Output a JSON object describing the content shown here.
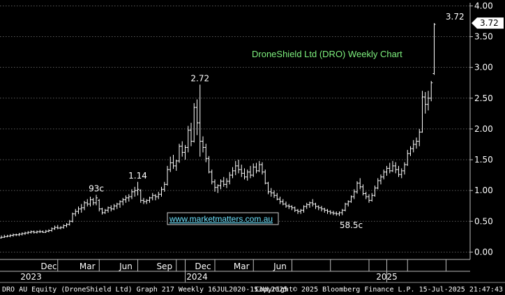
{
  "chart_data": {
    "type": "ohlc",
    "title": "DroneShield Ltd (DRO) Weekly Chart",
    "watermark": "www.marketmatters.com.au",
    "y_ticks": [
      "4.00",
      "3.50",
      "3.00",
      "2.50",
      "2.00",
      "1.50",
      "1.00",
      "0.50",
      "0.00"
    ],
    "y_tick_values": [
      4.0,
      3.5,
      3.0,
      2.5,
      2.0,
      1.5,
      1.0,
      0.5,
      0.0
    ],
    "ylim": [
      -0.12,
      4.05
    ],
    "x_month_labels": [
      "Dec",
      "Mar",
      "Jun",
      "Sep",
      "Dec",
      "Mar",
      "Jun"
    ],
    "x_year_labels": [
      "2023",
      "2024",
      "2025"
    ],
    "last_price": "3.72",
    "annotations": [
      {
        "text": "93c",
        "week": 32,
        "value": 0.93
      },
      {
        "text": "1.14",
        "week": 46,
        "value": 1.14
      },
      {
        "text": "2.72",
        "week": 67,
        "value": 2.72
      },
      {
        "text": "58.5c",
        "week": 118,
        "value": 0.585
      },
      {
        "text": "3.72",
        "week": 153,
        "value": 3.72
      }
    ],
    "weeks": [
      {
        "high": 0.27,
        "low": 0.22,
        "open": 0.23,
        "close": 0.24
      },
      {
        "high": 0.28,
        "low": 0.23,
        "open": 0.24,
        "close": 0.25
      },
      {
        "high": 0.28,
        "low": 0.24,
        "open": 0.25,
        "close": 0.26
      },
      {
        "high": 0.29,
        "low": 0.24,
        "open": 0.26,
        "close": 0.27
      },
      {
        "high": 0.3,
        "low": 0.25,
        "open": 0.27,
        "close": 0.28
      },
      {
        "high": 0.3,
        "low": 0.26,
        "open": 0.28,
        "close": 0.28
      },
      {
        "high": 0.31,
        "low": 0.26,
        "open": 0.28,
        "close": 0.29
      },
      {
        "high": 0.32,
        "low": 0.27,
        "open": 0.29,
        "close": 0.3
      },
      {
        "high": 0.33,
        "low": 0.28,
        "open": 0.3,
        "close": 0.31
      },
      {
        "high": 0.34,
        "low": 0.29,
        "open": 0.31,
        "close": 0.32
      },
      {
        "high": 0.35,
        "low": 0.3,
        "open": 0.32,
        "close": 0.33
      },
      {
        "high": 0.35,
        "low": 0.3,
        "open": 0.33,
        "close": 0.32
      },
      {
        "high": 0.35,
        "low": 0.3,
        "open": 0.32,
        "close": 0.33
      },
      {
        "high": 0.36,
        "low": 0.31,
        "open": 0.33,
        "close": 0.33
      },
      {
        "high": 0.35,
        "low": 0.31,
        "open": 0.33,
        "close": 0.32
      },
      {
        "high": 0.36,
        "low": 0.31,
        "open": 0.32,
        "close": 0.34
      },
      {
        "high": 0.37,
        "low": 0.32,
        "open": 0.34,
        "close": 0.35
      },
      {
        "high": 0.4,
        "low": 0.33,
        "open": 0.35,
        "close": 0.38
      },
      {
        "high": 0.43,
        "low": 0.36,
        "open": 0.38,
        "close": 0.4
      },
      {
        "high": 0.44,
        "low": 0.37,
        "open": 0.4,
        "close": 0.39
      },
      {
        "high": 0.42,
        "low": 0.37,
        "open": 0.39,
        "close": 0.4
      },
      {
        "high": 0.45,
        "low": 0.38,
        "open": 0.4,
        "close": 0.43
      },
      {
        "high": 0.47,
        "low": 0.4,
        "open": 0.43,
        "close": 0.45
      },
      {
        "high": 0.52,
        "low": 0.43,
        "open": 0.45,
        "close": 0.5
      },
      {
        "high": 0.64,
        "low": 0.48,
        "open": 0.5,
        "close": 0.62
      },
      {
        "high": 0.7,
        "low": 0.58,
        "open": 0.62,
        "close": 0.66
      },
      {
        "high": 0.74,
        "low": 0.62,
        "open": 0.66,
        "close": 0.7
      },
      {
        "high": 0.78,
        "low": 0.64,
        "open": 0.7,
        "close": 0.72
      },
      {
        "high": 0.83,
        "low": 0.68,
        "open": 0.72,
        "close": 0.8
      },
      {
        "high": 0.86,
        "low": 0.74,
        "open": 0.8,
        "close": 0.78
      },
      {
        "high": 0.9,
        "low": 0.74,
        "open": 0.78,
        "close": 0.85
      },
      {
        "high": 0.88,
        "low": 0.76,
        "open": 0.85,
        "close": 0.8
      },
      {
        "high": 0.93,
        "low": 0.76,
        "open": 0.8,
        "close": 0.88
      },
      {
        "high": 0.86,
        "low": 0.66,
        "open": 0.84,
        "close": 0.7
      },
      {
        "high": 0.72,
        "low": 0.61,
        "open": 0.7,
        "close": 0.64
      },
      {
        "high": 0.7,
        "low": 0.62,
        "open": 0.64,
        "close": 0.68
      },
      {
        "high": 0.74,
        "low": 0.64,
        "open": 0.68,
        "close": 0.72
      },
      {
        "high": 0.76,
        "low": 0.66,
        "open": 0.72,
        "close": 0.7
      },
      {
        "high": 0.78,
        "low": 0.68,
        "open": 0.7,
        "close": 0.75
      },
      {
        "high": 0.8,
        "low": 0.7,
        "open": 0.75,
        "close": 0.78
      },
      {
        "high": 0.84,
        "low": 0.72,
        "open": 0.78,
        "close": 0.82
      },
      {
        "high": 0.88,
        "low": 0.76,
        "open": 0.82,
        "close": 0.85
      },
      {
        "high": 0.92,
        "low": 0.8,
        "open": 0.85,
        "close": 0.88
      },
      {
        "high": 0.94,
        "low": 0.82,
        "open": 0.88,
        "close": 0.9
      },
      {
        "high": 1.02,
        "low": 0.86,
        "open": 0.9,
        "close": 0.98
      },
      {
        "high": 1.06,
        "low": 0.9,
        "open": 0.98,
        "close": 1.0
      },
      {
        "high": 1.14,
        "low": 0.92,
        "open": 1.0,
        "close": 1.02
      },
      {
        "high": 1.02,
        "low": 0.8,
        "open": 1.0,
        "close": 0.84
      },
      {
        "high": 0.88,
        "low": 0.78,
        "open": 0.84,
        "close": 0.82
      },
      {
        "high": 0.86,
        "low": 0.78,
        "open": 0.82,
        "close": 0.84
      },
      {
        "high": 0.9,
        "low": 0.8,
        "open": 0.84,
        "close": 0.88
      },
      {
        "high": 0.96,
        "low": 0.84,
        "open": 0.88,
        "close": 0.92
      },
      {
        "high": 0.94,
        "low": 0.84,
        "open": 0.92,
        "close": 0.9
      },
      {
        "high": 0.98,
        "low": 0.86,
        "open": 0.9,
        "close": 0.94
      },
      {
        "high": 1.06,
        "low": 0.9,
        "open": 0.94,
        "close": 1.02
      },
      {
        "high": 1.14,
        "low": 0.98,
        "open": 1.02,
        "close": 1.1
      },
      {
        "high": 1.4,
        "low": 1.08,
        "open": 1.1,
        "close": 1.34
      },
      {
        "high": 1.55,
        "low": 1.3,
        "open": 1.34,
        "close": 1.45
      },
      {
        "high": 1.58,
        "low": 1.35,
        "open": 1.45,
        "close": 1.4
      },
      {
        "high": 1.5,
        "low": 1.32,
        "open": 1.4,
        "close": 1.48
      },
      {
        "high": 1.76,
        "low": 1.45,
        "open": 1.48,
        "close": 1.72
      },
      {
        "high": 1.8,
        "low": 1.55,
        "open": 1.72,
        "close": 1.62
      },
      {
        "high": 1.74,
        "low": 1.5,
        "open": 1.62,
        "close": 1.7
      },
      {
        "high": 2.05,
        "low": 1.62,
        "open": 1.7,
        "close": 1.98
      },
      {
        "high": 2.1,
        "low": 1.72,
        "open": 1.98,
        "close": 1.8
      },
      {
        "high": 2.42,
        "low": 1.78,
        "open": 1.8,
        "close": 2.35
      },
      {
        "high": 2.48,
        "low": 1.9,
        "open": 2.35,
        "close": 2.1
      },
      {
        "high": 2.72,
        "low": 1.55,
        "open": 2.1,
        "close": 1.8
      },
      {
        "high": 1.88,
        "low": 1.62,
        "open": 1.8,
        "close": 1.7
      },
      {
        "high": 1.76,
        "low": 1.46,
        "open": 1.7,
        "close": 1.52
      },
      {
        "high": 1.56,
        "low": 1.28,
        "open": 1.52,
        "close": 1.3
      },
      {
        "high": 1.34,
        "low": 1.1,
        "open": 1.3,
        "close": 1.14
      },
      {
        "high": 1.18,
        "low": 0.98,
        "open": 1.14,
        "close": 1.05
      },
      {
        "high": 1.1,
        "low": 0.96,
        "open": 1.05,
        "close": 1.08
      },
      {
        "high": 1.18,
        "low": 1.02,
        "open": 1.08,
        "close": 1.15
      },
      {
        "high": 1.22,
        "low": 1.06,
        "open": 1.15,
        "close": 1.1
      },
      {
        "high": 1.2,
        "low": 1.04,
        "open": 1.1,
        "close": 1.15
      },
      {
        "high": 1.3,
        "low": 1.1,
        "open": 1.15,
        "close": 1.25
      },
      {
        "high": 1.38,
        "low": 1.2,
        "open": 1.25,
        "close": 1.32
      },
      {
        "high": 1.48,
        "low": 1.25,
        "open": 1.32,
        "close": 1.4
      },
      {
        "high": 1.5,
        "low": 1.28,
        "open": 1.4,
        "close": 1.34
      },
      {
        "high": 1.42,
        "low": 1.22,
        "open": 1.34,
        "close": 1.28
      },
      {
        "high": 1.36,
        "low": 1.18,
        "open": 1.28,
        "close": 1.22
      },
      {
        "high": 1.34,
        "low": 1.16,
        "open": 1.22,
        "close": 1.3
      },
      {
        "high": 1.4,
        "low": 1.2,
        "open": 1.3,
        "close": 1.25
      },
      {
        "high": 1.44,
        "low": 1.22,
        "open": 1.25,
        "close": 1.38
      },
      {
        "high": 1.45,
        "low": 1.28,
        "open": 1.38,
        "close": 1.32
      },
      {
        "high": 1.48,
        "low": 1.3,
        "open": 1.32,
        "close": 1.42
      },
      {
        "high": 1.46,
        "low": 1.26,
        "open": 1.42,
        "close": 1.3
      },
      {
        "high": 1.34,
        "low": 1.1,
        "open": 1.3,
        "close": 1.12
      },
      {
        "high": 1.14,
        "low": 0.94,
        "open": 1.12,
        "close": 0.98
      },
      {
        "high": 1.04,
        "low": 0.9,
        "open": 0.98,
        "close": 0.96
      },
      {
        "high": 1.0,
        "low": 0.88,
        "open": 0.96,
        "close": 0.92
      },
      {
        "high": 0.96,
        "low": 0.84,
        "open": 0.92,
        "close": 0.86
      },
      {
        "high": 0.9,
        "low": 0.78,
        "open": 0.86,
        "close": 0.82
      },
      {
        "high": 0.86,
        "low": 0.76,
        "open": 0.82,
        "close": 0.78
      },
      {
        "high": 0.82,
        "low": 0.72,
        "open": 0.78,
        "close": 0.75
      },
      {
        "high": 0.78,
        "low": 0.7,
        "open": 0.75,
        "close": 0.74
      },
      {
        "high": 0.76,
        "low": 0.68,
        "open": 0.74,
        "close": 0.72
      },
      {
        "high": 0.74,
        "low": 0.65,
        "open": 0.72,
        "close": 0.68
      },
      {
        "high": 0.7,
        "low": 0.62,
        "open": 0.68,
        "close": 0.66
      },
      {
        "high": 0.7,
        "low": 0.62,
        "open": 0.66,
        "close": 0.68
      },
      {
        "high": 0.76,
        "low": 0.64,
        "open": 0.68,
        "close": 0.74
      },
      {
        "high": 0.8,
        "low": 0.7,
        "open": 0.74,
        "close": 0.77
      },
      {
        "high": 0.82,
        "low": 0.72,
        "open": 0.77,
        "close": 0.8
      },
      {
        "high": 0.86,
        "low": 0.74,
        "open": 0.8,
        "close": 0.78
      },
      {
        "high": 0.8,
        "low": 0.7,
        "open": 0.78,
        "close": 0.74
      },
      {
        "high": 0.76,
        "low": 0.68,
        "open": 0.74,
        "close": 0.72
      },
      {
        "high": 0.75,
        "low": 0.66,
        "open": 0.72,
        "close": 0.7
      },
      {
        "high": 0.72,
        "low": 0.64,
        "open": 0.7,
        "close": 0.68
      },
      {
        "high": 0.7,
        "low": 0.62,
        "open": 0.68,
        "close": 0.66
      },
      {
        "high": 0.68,
        "low": 0.61,
        "open": 0.66,
        "close": 0.64
      },
      {
        "high": 0.67,
        "low": 0.6,
        "open": 0.64,
        "close": 0.63
      },
      {
        "high": 0.66,
        "low": 0.59,
        "open": 0.63,
        "close": 0.62
      },
      {
        "high": 0.66,
        "low": 0.585,
        "open": 0.62,
        "close": 0.64
      },
      {
        "high": 0.7,
        "low": 0.6,
        "open": 0.64,
        "close": 0.68
      },
      {
        "high": 0.8,
        "low": 0.66,
        "open": 0.68,
        "close": 0.78
      },
      {
        "high": 0.84,
        "low": 0.74,
        "open": 0.78,
        "close": 0.82
      },
      {
        "high": 0.92,
        "low": 0.8,
        "open": 0.82,
        "close": 0.9
      },
      {
        "high": 1.02,
        "low": 0.86,
        "open": 0.9,
        "close": 0.98
      },
      {
        "high": 1.15,
        "low": 0.95,
        "open": 0.98,
        "close": 1.12
      },
      {
        "high": 1.2,
        "low": 1.02,
        "open": 1.12,
        "close": 1.06
      },
      {
        "high": 1.1,
        "low": 0.92,
        "open": 1.06,
        "close": 0.95
      },
      {
        "high": 0.98,
        "low": 0.86,
        "open": 0.95,
        "close": 0.9
      },
      {
        "high": 0.94,
        "low": 0.8,
        "open": 0.9,
        "close": 0.84
      },
      {
        "high": 0.96,
        "low": 0.82,
        "open": 0.84,
        "close": 0.92
      },
      {
        "high": 1.08,
        "low": 0.9,
        "open": 0.92,
        "close": 1.04
      },
      {
        "high": 1.2,
        "low": 1.02,
        "open": 1.04,
        "close": 1.16
      },
      {
        "high": 1.26,
        "low": 1.1,
        "open": 1.16,
        "close": 1.22
      },
      {
        "high": 1.34,
        "low": 1.18,
        "open": 1.22,
        "close": 1.3
      },
      {
        "high": 1.4,
        "low": 1.24,
        "open": 1.3,
        "close": 1.36
      },
      {
        "high": 1.45,
        "low": 1.28,
        "open": 1.36,
        "close": 1.32
      },
      {
        "high": 1.48,
        "low": 1.3,
        "open": 1.32,
        "close": 1.4
      },
      {
        "high": 1.46,
        "low": 1.28,
        "open": 1.4,
        "close": 1.34
      },
      {
        "high": 1.4,
        "low": 1.22,
        "open": 1.34,
        "close": 1.26
      },
      {
        "high": 1.36,
        "low": 1.2,
        "open": 1.26,
        "close": 1.32
      },
      {
        "high": 1.46,
        "low": 1.26,
        "open": 1.32,
        "close": 1.42
      },
      {
        "high": 1.66,
        "low": 1.4,
        "open": 1.42,
        "close": 1.6
      },
      {
        "high": 1.72,
        "low": 1.56,
        "open": 1.6,
        "close": 1.68
      },
      {
        "high": 1.82,
        "low": 1.62,
        "open": 1.68,
        "close": 1.75
      },
      {
        "high": 1.86,
        "low": 1.68,
        "open": 1.75,
        "close": 1.8
      },
      {
        "high": 2.0,
        "low": 1.72,
        "open": 1.8,
        "close": 1.95
      },
      {
        "high": 2.62,
        "low": 1.94,
        "open": 1.95,
        "close": 2.52
      },
      {
        "high": 2.6,
        "low": 2.25,
        "open": 2.52,
        "close": 2.4
      },
      {
        "high": 2.62,
        "low": 2.3,
        "open": 2.4,
        "close": 2.5
      },
      {
        "high": 2.78,
        "low": 2.45,
        "open": 2.5,
        "close": 2.75
      },
      {
        "high": 3.72,
        "low": 2.88,
        "open": 2.9,
        "close": 3.7
      }
    ]
  },
  "footer": {
    "left": "DRO AU Equity (DroneShield Ltd) Graph 217  Weekly 16JUL2020-15JUL2025",
    "right": "Copyright© 2025 Bloomberg Finance L.P.  15-Jul-2025 21:47:43"
  },
  "colors": {
    "background": "#000000",
    "bars": "#ffffff",
    "grid": "#7a7a7a",
    "title": "#7ef07e",
    "watermark": "#6fe3ff"
  }
}
